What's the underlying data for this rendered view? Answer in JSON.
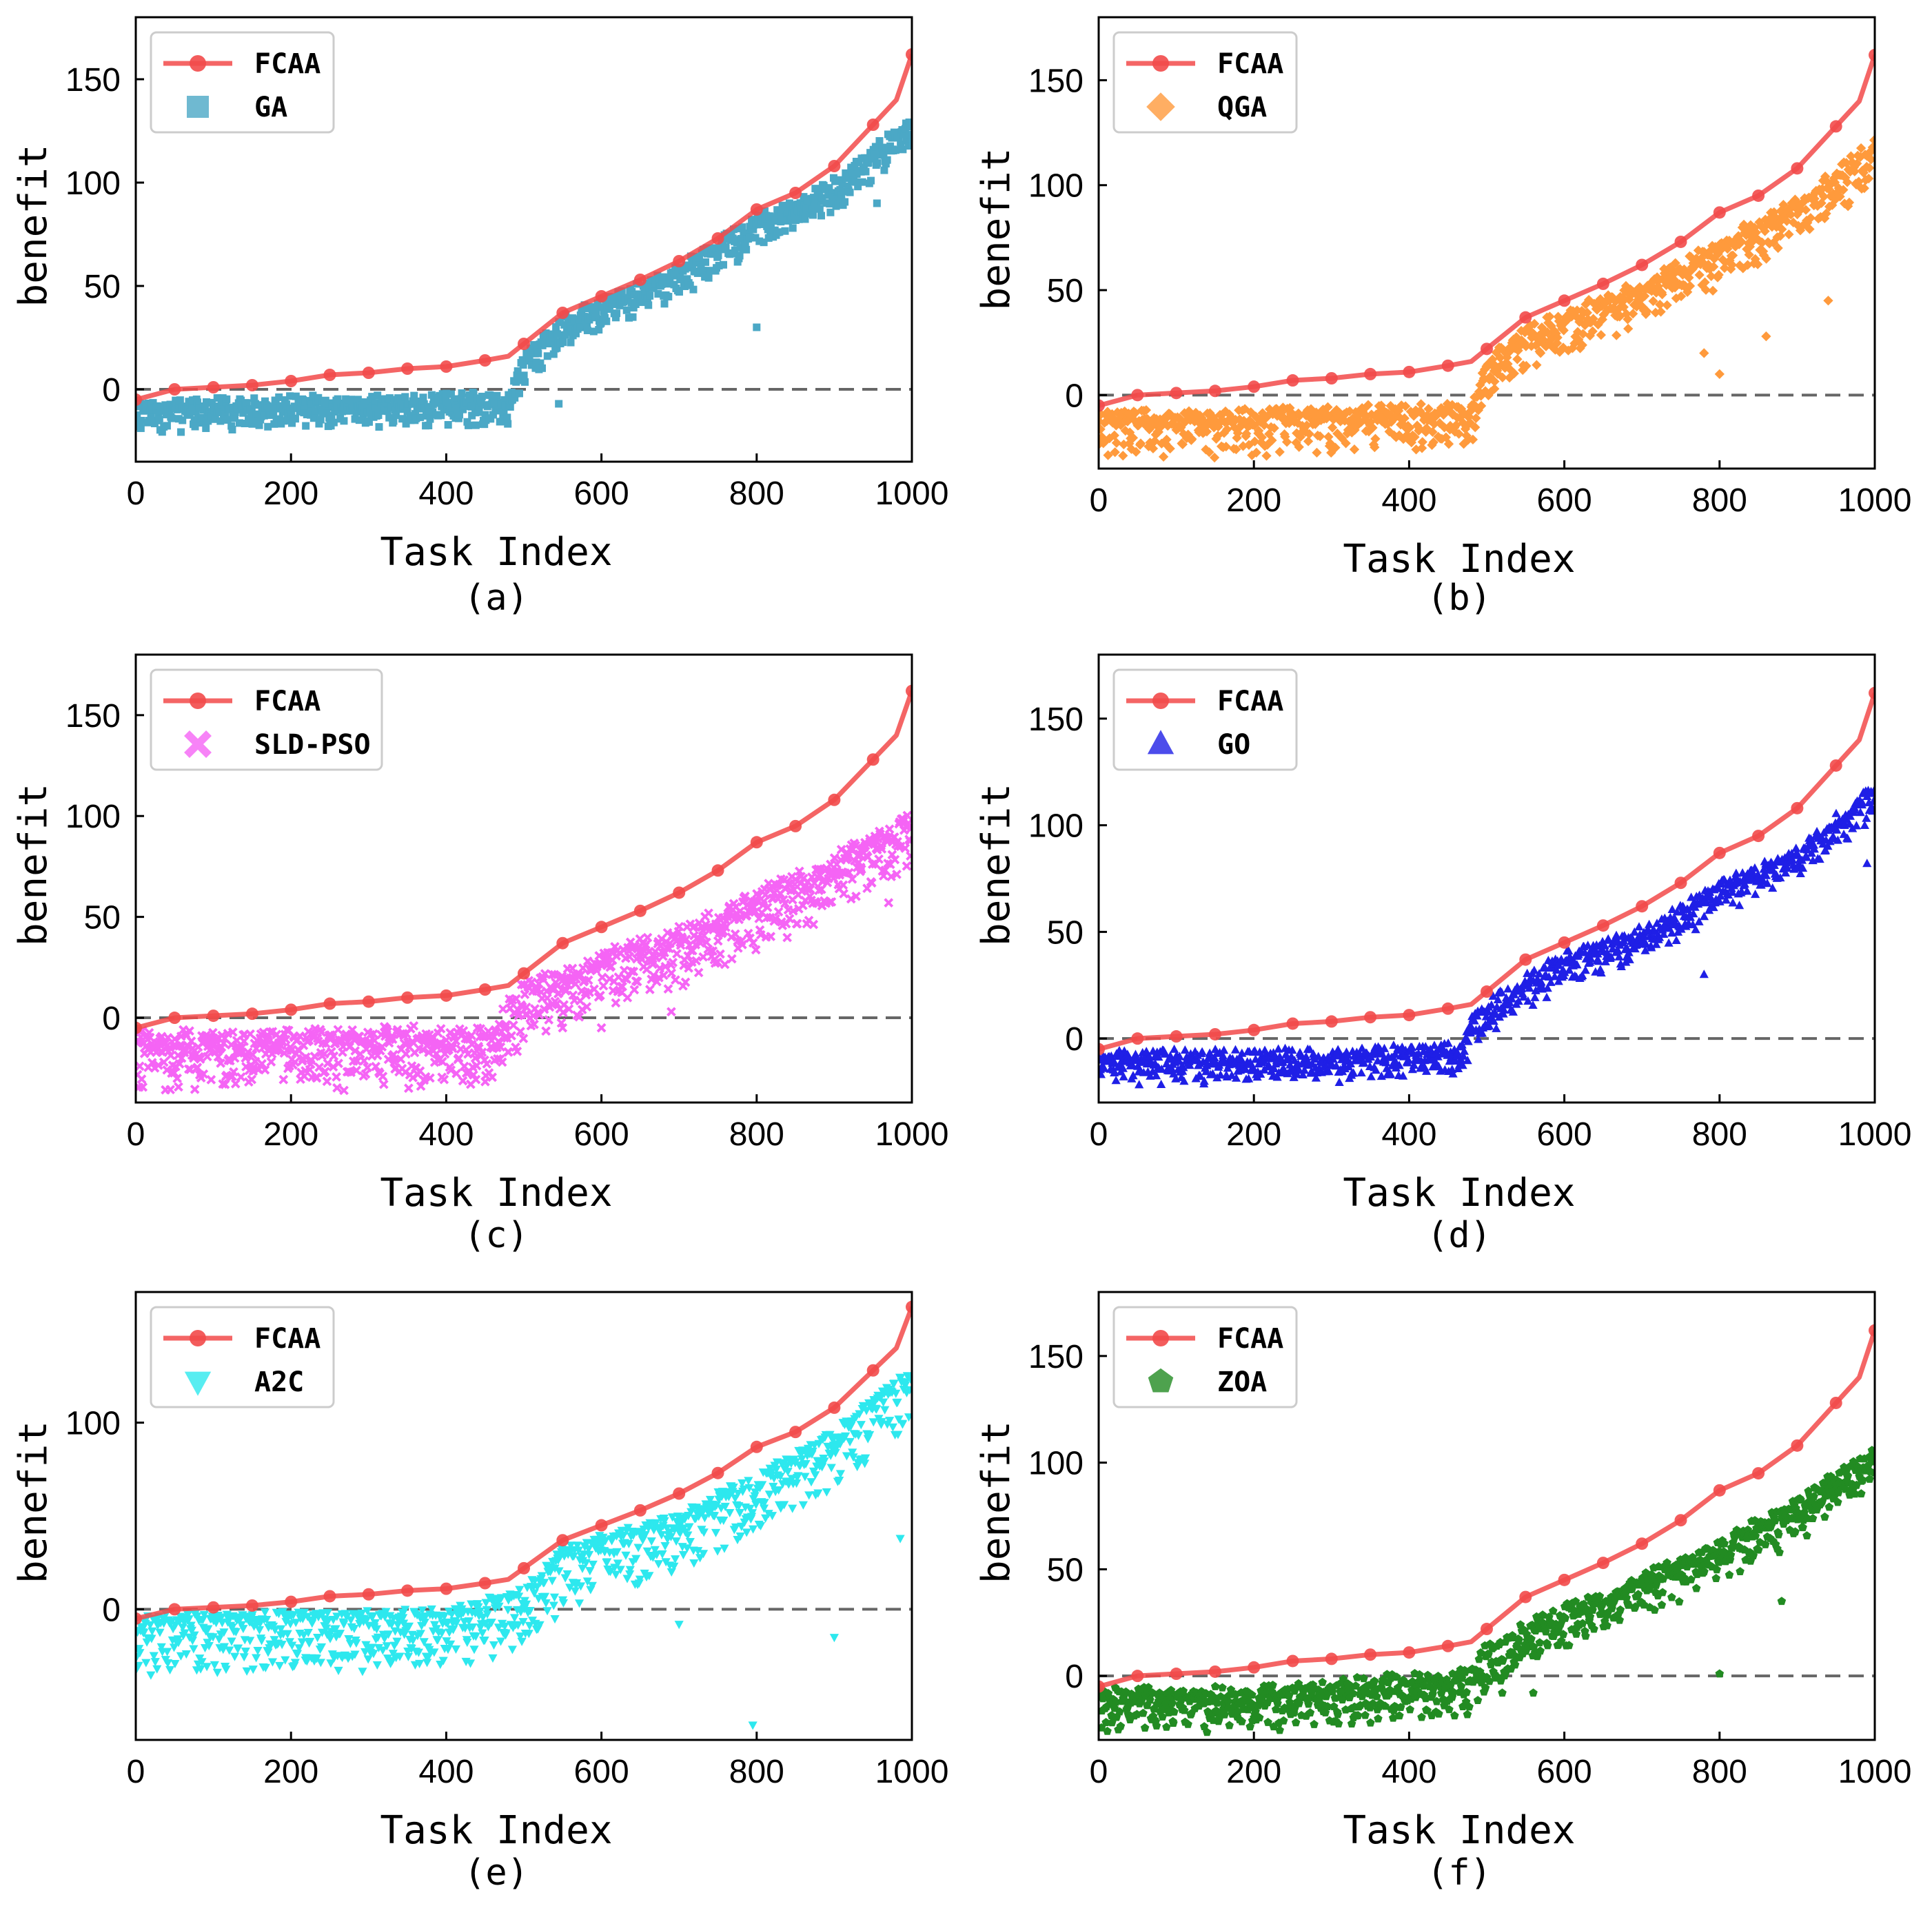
{
  "chart_data": [
    {
      "type": "scatter",
      "panel": "(a)",
      "caption": "(a)",
      "xlabel": "Task Index",
      "ylabel": "benefit",
      "xlim": [
        0,
        1000
      ],
      "ylim": [
        -35,
        180
      ],
      "xticks": [
        0,
        200,
        400,
        600,
        800,
        1000
      ],
      "yticks": [
        0,
        50,
        100,
        150
      ],
      "reference_line_y": 0,
      "legend": [
        {
          "label": "FCAA",
          "marker": "circle",
          "color": "#f24a4a"
        },
        {
          "label": "GA",
          "marker": "square",
          "color": "#4ba8c6"
        }
      ],
      "series": [
        {
          "name": "FCAA",
          "kind": "line",
          "color": "#f24a4a",
          "x": [
            0,
            50,
            100,
            150,
            200,
            250,
            300,
            350,
            400,
            450,
            480,
            500,
            550,
            600,
            650,
            700,
            750,
            800,
            850,
            900,
            950,
            980,
            1000
          ],
          "y": [
            -5,
            0,
            1,
            2,
            4,
            7,
            8,
            10,
            11,
            14,
            16,
            22,
            37,
            45,
            53,
            62,
            73,
            87,
            95,
            108,
            128,
            140,
            162
          ]
        },
        {
          "name": "GA",
          "kind": "scatter",
          "color": "#4ba8c6",
          "trend": [
            [
              0,
              -8
            ],
            [
              200,
              -6
            ],
            [
              480,
              -4
            ],
            [
              500,
              15
            ],
            [
              550,
              33
            ],
            [
              600,
              42
            ],
            [
              700,
              58
            ],
            [
              800,
              82
            ],
            [
              900,
              100
            ],
            [
              1000,
              130
            ]
          ],
          "spread_below": 12,
          "spread_above": 3,
          "outliers": [
            [
              5,
              -18
            ],
            [
              545,
              -7
            ],
            [
              590,
              28
            ],
            [
              800,
              30
            ],
            [
              955,
              90
            ]
          ]
        }
      ]
    },
    {
      "type": "scatter",
      "panel": "(b)",
      "caption": "(b)",
      "xlabel": "Task Index",
      "ylabel": "benefit",
      "xlim": [
        0,
        1000
      ],
      "ylim": [
        -35,
        180
      ],
      "xticks": [
        0,
        200,
        400,
        600,
        800,
        1000
      ],
      "yticks": [
        0,
        50,
        100,
        150
      ],
      "reference_line_y": 0,
      "legend": [
        {
          "label": "FCAA",
          "marker": "circle",
          "color": "#f24a4a"
        },
        {
          "label": "QGA",
          "marker": "diamond",
          "color": "#ff9a3c"
        }
      ],
      "series": [
        {
          "name": "FCAA",
          "kind": "line",
          "color": "#f24a4a",
          "x": [
            0,
            50,
            100,
            150,
            200,
            250,
            300,
            350,
            400,
            450,
            480,
            500,
            550,
            600,
            650,
            700,
            750,
            800,
            850,
            900,
            950,
            980,
            1000
          ],
          "y": [
            -5,
            0,
            1,
            2,
            4,
            7,
            8,
            10,
            11,
            14,
            16,
            22,
            37,
            45,
            53,
            62,
            73,
            87,
            95,
            108,
            128,
            140,
            162
          ]
        },
        {
          "name": "QGA",
          "kind": "scatter",
          "color": "#ff9a3c",
          "trend": [
            [
              0,
              -10
            ],
            [
              200,
              -9
            ],
            [
              480,
              -6
            ],
            [
              500,
              15
            ],
            [
              550,
              30
            ],
            [
              600,
              38
            ],
            [
              700,
              52
            ],
            [
              800,
              72
            ],
            [
              900,
              92
            ],
            [
              1000,
              120
            ]
          ],
          "spread_below": 18,
          "spread_above": 3,
          "outliers": [
            [
              510,
              3
            ],
            [
              780,
              20
            ],
            [
              800,
              10
            ],
            [
              860,
              28
            ],
            [
              940,
              45
            ]
          ]
        }
      ]
    },
    {
      "type": "scatter",
      "panel": "(c)",
      "caption": "(c)",
      "xlabel": "Task Index",
      "ylabel": "benefit",
      "xlim": [
        0,
        1000
      ],
      "ylim": [
        -42,
        180
      ],
      "xticks": [
        0,
        200,
        400,
        600,
        800,
        1000
      ],
      "yticks": [
        0,
        50,
        100,
        150
      ],
      "reference_line_y": 0,
      "legend": [
        {
          "label": "FCAA",
          "marker": "circle",
          "color": "#f24a4a"
        },
        {
          "label": "SLD-PSO",
          "marker": "x",
          "color": "#f564f5"
        }
      ],
      "series": [
        {
          "name": "FCAA",
          "kind": "line",
          "color": "#f24a4a",
          "x": [
            0,
            50,
            100,
            150,
            200,
            250,
            300,
            350,
            400,
            450,
            480,
            500,
            550,
            600,
            650,
            700,
            750,
            800,
            850,
            900,
            950,
            980,
            1000
          ],
          "y": [
            -5,
            0,
            1,
            2,
            4,
            7,
            8,
            10,
            11,
            14,
            16,
            22,
            37,
            45,
            53,
            62,
            73,
            87,
            95,
            108,
            128,
            140,
            162
          ]
        },
        {
          "name": "SLD-PSO",
          "kind": "scatter",
          "color": "#f564f5",
          "trend": [
            [
              0,
              -10
            ],
            [
              200,
              -9
            ],
            [
              460,
              -7
            ],
            [
              480,
              5
            ],
            [
              500,
              15
            ],
            [
              550,
              22
            ],
            [
              600,
              30
            ],
            [
              700,
              42
            ],
            [
              800,
              60
            ],
            [
              900,
              78
            ],
            [
              1000,
              100
            ]
          ],
          "spread_below": 25,
          "spread_above": 4,
          "outliers": [
            [
              5,
              -24
            ],
            [
              550,
              -5
            ],
            [
              600,
              -5
            ],
            [
              690,
              3
            ],
            [
              970,
              57
            ]
          ]
        }
      ]
    },
    {
      "type": "scatter",
      "panel": "(d)",
      "caption": "(d)",
      "xlabel": "Task Index",
      "ylabel": "benefit",
      "xlim": [
        0,
        1000
      ],
      "ylim": [
        -30,
        180
      ],
      "xticks": [
        0,
        200,
        400,
        600,
        800,
        1000
      ],
      "yticks": [
        0,
        50,
        100,
        150
      ],
      "reference_line_y": 0,
      "legend": [
        {
          "label": "FCAA",
          "marker": "circle",
          "color": "#f24a4a"
        },
        {
          "label": "GO",
          "marker": "triangle-up",
          "color": "#1f1fe6"
        }
      ],
      "series": [
        {
          "name": "FCAA",
          "kind": "line",
          "color": "#f24a4a",
          "x": [
            0,
            50,
            100,
            150,
            200,
            250,
            300,
            350,
            400,
            450,
            480,
            500,
            550,
            600,
            650,
            700,
            750,
            800,
            850,
            900,
            950,
            980,
            1000
          ],
          "y": [
            -5,
            0,
            1,
            2,
            4,
            7,
            8,
            10,
            11,
            14,
            16,
            22,
            37,
            45,
            53,
            62,
            73,
            87,
            95,
            108,
            128,
            140,
            162
          ]
        },
        {
          "name": "GO",
          "kind": "scatter",
          "color": "#1f1fe6",
          "trend": [
            [
              0,
              -8
            ],
            [
              200,
              -8
            ],
            [
              470,
              -5
            ],
            [
              480,
              8
            ],
            [
              500,
              15
            ],
            [
              550,
              28
            ],
            [
              600,
              38
            ],
            [
              700,
              50
            ],
            [
              800,
              72
            ],
            [
              900,
              88
            ],
            [
              1000,
              118
            ]
          ],
          "spread_below": 12,
          "spread_above": 3,
          "outliers": [
            [
              780,
              30
            ],
            [
              990,
              82
            ]
          ]
        }
      ]
    },
    {
      "type": "scatter",
      "panel": "(e)",
      "caption": "(e)",
      "xlabel": "Task Index",
      "ylabel": "benefit",
      "xlim": [
        0,
        1000
      ],
      "ylim": [
        -70,
        170
      ],
      "xticks": [
        0,
        200,
        400,
        600,
        800,
        1000
      ],
      "yticks": [
        0,
        100
      ],
      "reference_line_y": 0,
      "legend": [
        {
          "label": "FCAA",
          "marker": "circle",
          "color": "#f24a4a"
        },
        {
          "label": "A2C",
          "marker": "triangle-down",
          "color": "#2de8ee"
        }
      ],
      "series": [
        {
          "name": "FCAA",
          "kind": "line",
          "color": "#f24a4a",
          "x": [
            0,
            50,
            100,
            150,
            200,
            250,
            300,
            350,
            400,
            450,
            480,
            500,
            550,
            600,
            650,
            700,
            750,
            800,
            850,
            900,
            950,
            980,
            1000
          ],
          "y": [
            -5,
            0,
            1,
            2,
            4,
            7,
            8,
            10,
            11,
            14,
            16,
            22,
            37,
            45,
            53,
            62,
            73,
            87,
            95,
            108,
            128,
            140,
            162
          ]
        },
        {
          "name": "A2C",
          "kind": "scatter",
          "color": "#2de8ee",
          "trend": [
            [
              0,
              -4
            ],
            [
              200,
              -3
            ],
            [
              400,
              -1
            ],
            [
              500,
              10
            ],
            [
              550,
              32
            ],
            [
              600,
              38
            ],
            [
              700,
              50
            ],
            [
              800,
              72
            ],
            [
              900,
              95
            ],
            [
              1000,
              130
            ]
          ],
          "spread_below": 30,
          "spread_above": 2,
          "outliers": [
            [
              540,
              -5
            ],
            [
              700,
              -8
            ],
            [
              795,
              -62
            ],
            [
              900,
              -15
            ],
            [
              985,
              38
            ]
          ]
        }
      ]
    },
    {
      "type": "scatter",
      "panel": "(f)",
      "caption": "(f)",
      "xlabel": "Task Index",
      "ylabel": "benefit",
      "xlim": [
        0,
        1000
      ],
      "ylim": [
        -30,
        180
      ],
      "xticks": [
        0,
        200,
        400,
        600,
        800,
        1000
      ],
      "yticks": [
        0,
        50,
        100,
        150
      ],
      "reference_line_y": 0,
      "legend": [
        {
          "label": "FCAA",
          "marker": "circle",
          "color": "#f24a4a"
        },
        {
          "label": "ZOA",
          "marker": "pentagon",
          "color": "#228b22"
        }
      ],
      "series": [
        {
          "name": "FCAA",
          "kind": "line",
          "color": "#f24a4a",
          "x": [
            0,
            50,
            100,
            150,
            200,
            250,
            300,
            350,
            400,
            450,
            480,
            500,
            550,
            600,
            650,
            700,
            750,
            800,
            850,
            900,
            950,
            980,
            1000
          ],
          "y": [
            -5,
            0,
            1,
            2,
            4,
            7,
            8,
            10,
            11,
            14,
            16,
            22,
            37,
            45,
            53,
            62,
            73,
            87,
            95,
            108,
            128,
            140,
            162
          ]
        },
        {
          "name": "ZOA",
          "kind": "scatter",
          "color": "#228b22",
          "trend": [
            [
              0,
              -9
            ],
            [
              200,
              -8
            ],
            [
              480,
              0
            ],
            [
              500,
              12
            ],
            [
              550,
              22
            ],
            [
              600,
              30
            ],
            [
              700,
              45
            ],
            [
              800,
              62
            ],
            [
              900,
              80
            ],
            [
              1000,
              105
            ]
          ],
          "spread_below": 16,
          "spread_above": 4,
          "outliers": [
            [
              520,
              -8
            ],
            [
              560,
              -8
            ],
            [
              800,
              1
            ],
            [
              880,
              35
            ]
          ]
        }
      ]
    }
  ]
}
